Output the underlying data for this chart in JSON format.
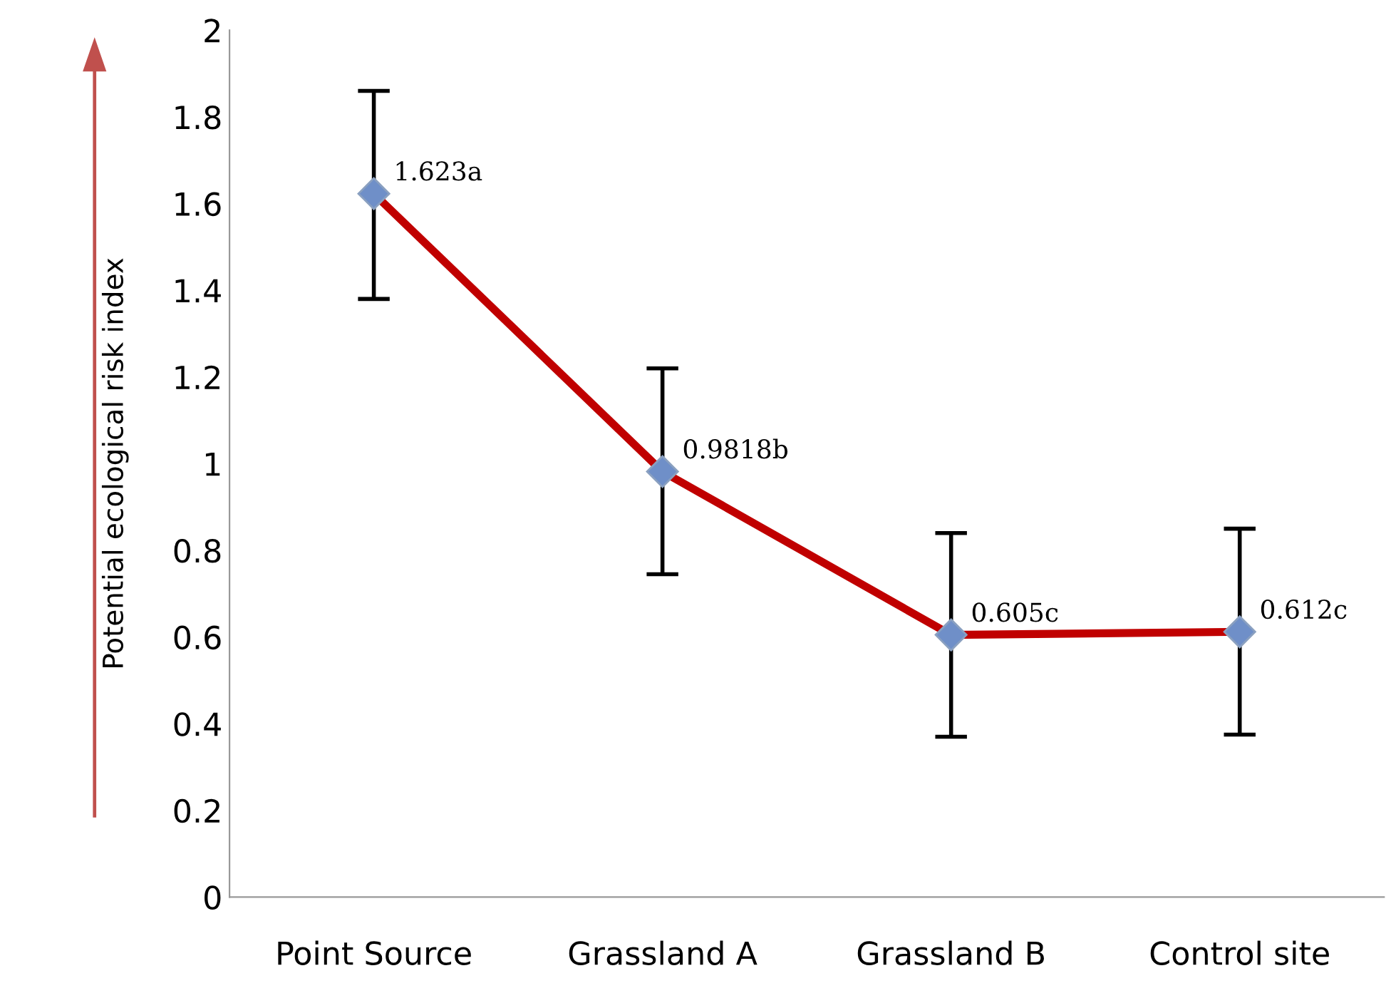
{
  "chart_data": {
    "type": "line",
    "ylabel": "Potential ecological risk index",
    "categories": [
      "Point Source",
      "Grassland A",
      "Grassland B",
      "Control site"
    ],
    "series": [
      {
        "color": "#c00000",
        "values": [
          1.623,
          0.9818,
          0.605,
          0.612
        ],
        "errors": [
          [
            1.38,
            1.86
          ],
          [
            0.745,
            1.22
          ],
          [
            0.37,
            0.84
          ],
          [
            0.375,
            0.85
          ]
        ],
        "value_labels": [
          "1.623a",
          "0.9818b",
          "0.605c",
          "0.612c"
        ]
      }
    ],
    "ylim": [
      0,
      2
    ],
    "yticks": [
      0,
      0.2,
      0.4,
      0.6,
      0.8,
      1,
      1.2,
      1.4,
      1.6,
      1.8,
      2
    ],
    "marker": "diamond",
    "line_style": "solid",
    "grid": false,
    "legend": false
  }
}
